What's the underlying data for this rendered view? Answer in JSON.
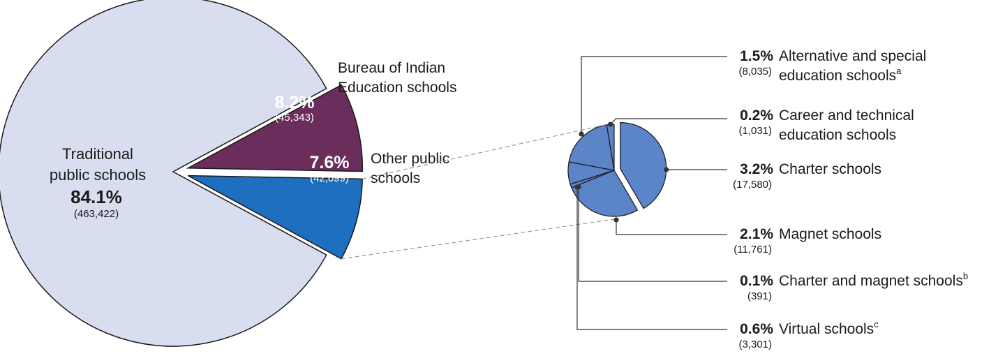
{
  "chart_data": [
    {
      "type": "pie",
      "slices": [
        {
          "label_lines": [
            "Traditional",
            "public schools"
          ],
          "percent_label": "84.1%",
          "count_label": "(463,422)",
          "value": 84.1,
          "count": 463422,
          "color": "#d9ddf0",
          "exploded": false
        },
        {
          "label_lines": [
            "Bureau of Indian",
            "Education schools"
          ],
          "percent_label": "8.2%",
          "count_label": "(45,343)",
          "value": 8.2,
          "count": 45343,
          "color": "#6b2d5c",
          "exploded": true
        },
        {
          "label_lines": [
            "Other public",
            "schools"
          ],
          "percent_label": "7.6%",
          "count_label": "(42,099)",
          "value": 7.6,
          "count": 42099,
          "color": "#1e6fbf",
          "exploded": true
        }
      ]
    },
    {
      "type": "pie",
      "color": "#5b84c9",
      "slices": [
        {
          "percent_label": "3.2%",
          "count_label": "(17,580)",
          "label_lines": [
            "Charter schools"
          ],
          "footnote": "",
          "value": 3.2,
          "count": 17580
        },
        {
          "percent_label": "2.1%",
          "count_label": "(11,761)",
          "label_lines": [
            "Magnet schools"
          ],
          "footnote": "",
          "value": 2.1,
          "count": 11761
        },
        {
          "percent_label": "0.1%",
          "count_label": "(391)",
          "label_lines": [
            "Charter and magnet schools"
          ],
          "footnote": "b",
          "value": 0.1,
          "count": 391
        },
        {
          "percent_label": "0.6%",
          "count_label": "(3,301)",
          "label_lines": [
            "Virtual schools"
          ],
          "footnote": "c",
          "value": 0.6,
          "count": 3301
        },
        {
          "percent_label": "1.5%",
          "count_label": "(8,035)",
          "label_lines": [
            "Alternative and special",
            "education schools"
          ],
          "footnote": "a",
          "value": 1.5,
          "count": 8035
        },
        {
          "percent_label": "0.2%",
          "count_label": "(1,031)",
          "label_lines": [
            "Career and technical",
            "education schools"
          ],
          "footnote": "",
          "value": 0.2,
          "count": 1031
        }
      ]
    }
  ]
}
